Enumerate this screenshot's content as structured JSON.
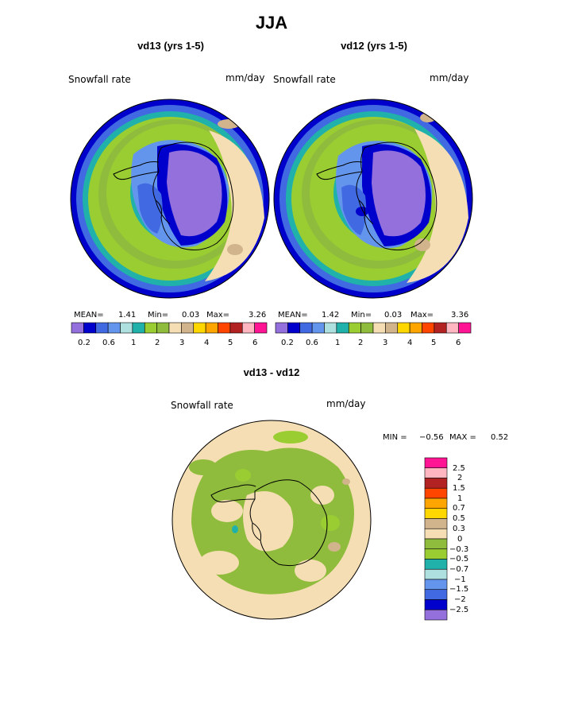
{
  "page_title": "JJA",
  "colors": {
    "scale": [
      "#9370db",
      "#0000cd",
      "#4169e1",
      "#6495ed",
      "#aee0e0",
      "#20b2aa",
      "#9acd32",
      "#8fbc3c",
      "#f5deb3",
      "#d2b48c",
      "#ffd700",
      "#ffa500",
      "#ff4500",
      "#b22222",
      "#ffb6c1",
      "#ff1493"
    ],
    "diff_scale": [
      "#ff1493",
      "#ffb6c1",
      "#b22222",
      "#ff4500",
      "#ffa500",
      "#ffd700",
      "#d2b48c",
      "#f5deb3",
      "#8fbc3c",
      "#9acd32",
      "#20b2aa",
      "#aee0e0",
      "#6495ed",
      "#4169e1",
      "#0000cd",
      "#9370db"
    ]
  },
  "panels": [
    {
      "title": "vd13 (yrs 1-5)",
      "field_label": "Snowfall rate",
      "units": "mm/day",
      "stats": {
        "mean_label": "MEAN=",
        "mean": "1.41",
        "min_label": "Min=",
        "min": "0.03",
        "max_label": "Max=",
        "max": "3.26"
      },
      "colorbar_ticks": [
        "0.2",
        "0.6",
        "1",
        "2",
        "3",
        "4",
        "5",
        "6"
      ]
    },
    {
      "title": "vd12 (yrs 1-5)",
      "field_label": "Snowfall rate",
      "units": "mm/day",
      "stats": {
        "mean_label": "MEAN=",
        "mean": "1.42",
        "min_label": "Min=",
        "min": "0.03",
        "max_label": "Max=",
        "max": "3.36"
      },
      "colorbar_ticks": [
        "0.2",
        "0.6",
        "1",
        "2",
        "3",
        "4",
        "5",
        "6"
      ]
    }
  ],
  "diff_panel": {
    "title": "vd13 - vd12",
    "field_label": "Snowfall rate",
    "units": "mm/day",
    "stats": {
      "min_label": "MIN =",
      "min": "−0.56",
      "max_label": "MAX =",
      "max": "0.52"
    },
    "colorbar_ticks": [
      "2.5",
      "2",
      "1.5",
      "1",
      "0.7",
      "0.5",
      "0.3",
      "0",
      "−0.3",
      "−0.5",
      "−0.7",
      "−1",
      "−1.5",
      "−2",
      "−2.5"
    ]
  }
}
